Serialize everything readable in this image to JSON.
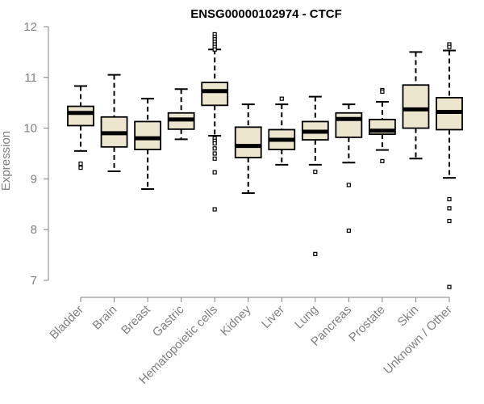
{
  "chart_data": {
    "type": "box",
    "title": "ENSG00000102974 - CTCF",
    "xlabel": "",
    "ylabel": "Expression",
    "ylim": [
      6.8,
      12.1
    ],
    "yticks": [
      7,
      8,
      9,
      10,
      11,
      12
    ],
    "grid": false,
    "legend": "none",
    "colors": {
      "box_fill": "#ede6cf",
      "box_stroke": "#000000",
      "axis": "#808080"
    },
    "categories": [
      "Bladder",
      "Brain",
      "Breast",
      "Gastric",
      "Hematopoietic cells",
      "Kidney",
      "Liver",
      "Lung",
      "Pancreas",
      "Prostate",
      "Skin",
      "Unknown / Other"
    ],
    "boxes": [
      {
        "category": "Bladder",
        "whisker_low": 9.55,
        "q1": 10.05,
        "median": 10.3,
        "q3": 10.43,
        "whisker_high": 10.83,
        "outliers": [
          9.3,
          9.22
        ]
      },
      {
        "category": "Brain",
        "whisker_low": 9.15,
        "q1": 9.63,
        "median": 9.9,
        "q3": 10.22,
        "whisker_high": 11.05,
        "outliers": []
      },
      {
        "category": "Breast",
        "whisker_low": 8.8,
        "q1": 9.58,
        "median": 9.8,
        "q3": 10.13,
        "whisker_high": 10.58,
        "outliers": []
      },
      {
        "category": "Gastric",
        "whisker_low": 9.78,
        "q1": 9.98,
        "median": 10.17,
        "q3": 10.3,
        "whisker_high": 10.77,
        "outliers": []
      },
      {
        "category": "Hematopoietic cells",
        "whisker_low": 9.85,
        "q1": 10.45,
        "median": 10.73,
        "q3": 10.9,
        "whisker_high": 11.55,
        "outliers": [
          11.85,
          11.8,
          11.75,
          11.7,
          11.65,
          11.6,
          11.55,
          9.8,
          9.75,
          9.7,
          9.6,
          9.5,
          9.4,
          9.13,
          8.4
        ]
      },
      {
        "category": "Kidney",
        "whisker_low": 8.72,
        "q1": 9.42,
        "median": 9.65,
        "q3": 10.02,
        "whisker_high": 10.47,
        "outliers": []
      },
      {
        "category": "Liver",
        "whisker_low": 9.28,
        "q1": 9.58,
        "median": 9.77,
        "q3": 9.97,
        "whisker_high": 10.47,
        "outliers": [
          10.58
        ]
      },
      {
        "category": "Lung",
        "whisker_low": 9.28,
        "q1": 9.77,
        "median": 9.93,
        "q3": 10.13,
        "whisker_high": 10.62,
        "outliers": [
          9.14,
          7.52
        ]
      },
      {
        "category": "Pancreas",
        "whisker_low": 9.32,
        "q1": 9.82,
        "median": 10.18,
        "q3": 10.3,
        "whisker_high": 10.47,
        "outliers": [
          8.88,
          7.98
        ]
      },
      {
        "category": "Prostate",
        "whisker_low": 9.57,
        "q1": 9.88,
        "median": 9.95,
        "q3": 10.17,
        "whisker_high": 10.52,
        "outliers": [
          10.75,
          10.72,
          9.35
        ]
      },
      {
        "category": "Skin",
        "whisker_low": 9.4,
        "q1": 10.0,
        "median": 10.37,
        "q3": 10.85,
        "whisker_high": 11.5,
        "outliers": []
      },
      {
        "category": "Unknown / Other",
        "whisker_low": 9.02,
        "q1": 9.97,
        "median": 10.32,
        "q3": 10.6,
        "whisker_high": 11.53,
        "outliers": [
          11.65,
          11.6,
          8.6,
          8.42,
          8.17,
          6.87
        ]
      }
    ]
  }
}
